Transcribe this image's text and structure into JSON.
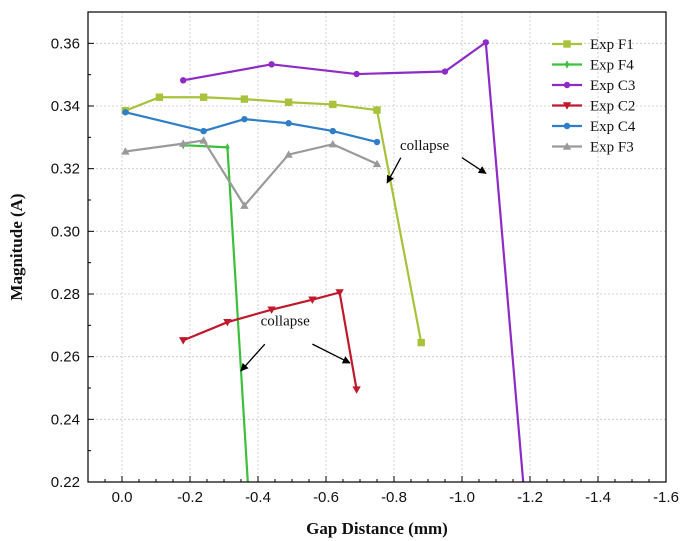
{
  "chart_data": {
    "type": "line",
    "title": "",
    "xlabel": "Gap Distance (mm)",
    "ylabel": "Magnitude (A)",
    "xlim": [
      0.1,
      -1.6
    ],
    "ylim": [
      0.22,
      0.37
    ],
    "x_ticks": [
      0.0,
      -0.2,
      -0.4,
      -0.6,
      -0.8,
      -1.0,
      -1.2,
      -1.4,
      -1.6
    ],
    "x_tick_labels": [
      "0.0",
      "-0.2",
      "-0.4",
      "-0.6",
      "-0.8",
      "-1.0",
      "-1.2",
      "-1.4",
      "-1.6"
    ],
    "y_ticks": [
      0.22,
      0.24,
      0.26,
      0.28,
      0.3,
      0.32,
      0.34,
      0.36
    ],
    "y_tick_labels": [
      "0.22",
      "0.24",
      "0.26",
      "0.28",
      "0.30",
      "0.32",
      "0.34",
      "0.36"
    ],
    "grid": true,
    "legend_position": "top-right",
    "series": [
      {
        "name": "Exp F1",
        "color": "#a8c23a",
        "marker": "square",
        "x": [
          -0.01,
          -0.11,
          -0.24,
          -0.36,
          -0.49,
          -0.62,
          -0.75,
          -0.88
        ],
        "y": [
          0.3385,
          0.3428,
          0.3428,
          0.3422,
          0.3412,
          0.3405,
          0.3387,
          0.2645
        ]
      },
      {
        "name": "Exp F4",
        "color": "#3cc03c",
        "marker": "diamond",
        "x": [
          -0.18,
          -0.31,
          -0.37
        ],
        "y": [
          0.3275,
          0.3268,
          0.22
        ]
      },
      {
        "name": "Exp C3",
        "color": "#8e2bc4",
        "marker": "circle",
        "x": [
          -0.18,
          -0.44,
          -0.69,
          -0.95,
          -1.07,
          -1.18
        ],
        "y": [
          0.3482,
          0.3533,
          0.3502,
          0.351,
          0.3603,
          0.22
        ]
      },
      {
        "name": "Exp C2",
        "color": "#c0192b",
        "marker": "triangle-down",
        "x": [
          -0.18,
          -0.31,
          -0.44,
          -0.56,
          -0.64,
          -0.69
        ],
        "y": [
          0.2652,
          0.271,
          0.275,
          0.2782,
          0.2805,
          0.2495
        ]
      },
      {
        "name": "Exp C4",
        "color": "#2f7ec8",
        "marker": "circle",
        "x": [
          -0.01,
          -0.24,
          -0.36,
          -0.49,
          -0.62,
          -0.75
        ],
        "y": [
          0.338,
          0.332,
          0.3358,
          0.3345,
          0.332,
          0.3285
        ]
      },
      {
        "name": "Exp F3",
        "color": "#9a9a9a",
        "marker": "triangle-up",
        "x": [
          -0.01,
          -0.18,
          -0.24,
          -0.36,
          -0.49,
          -0.62,
          -0.75
        ],
        "y": [
          0.3255,
          0.328,
          0.329,
          0.3082,
          0.3245,
          0.3278,
          0.3215
        ]
      }
    ],
    "annotations": [
      {
        "text": "collapse",
        "text_at": [
          -0.89,
          0.326
        ],
        "arrows": [
          {
            "from": [
              -0.82,
              0.3235
            ],
            "to": [
              -0.78,
              0.3155
            ]
          },
          {
            "from": [
              -1.0,
              0.3235
            ],
            "to": [
              -1.07,
              0.3185
            ]
          }
        ]
      },
      {
        "text": "collapse",
        "text_at": [
          -0.48,
          0.27
        ],
        "arrows": [
          {
            "from": [
              -0.42,
              0.264
            ],
            "to": [
              -0.35,
              0.2555
            ]
          },
          {
            "from": [
              -0.56,
              0.264
            ],
            "to": [
              -0.67,
              0.258
            ]
          }
        ]
      }
    ]
  }
}
